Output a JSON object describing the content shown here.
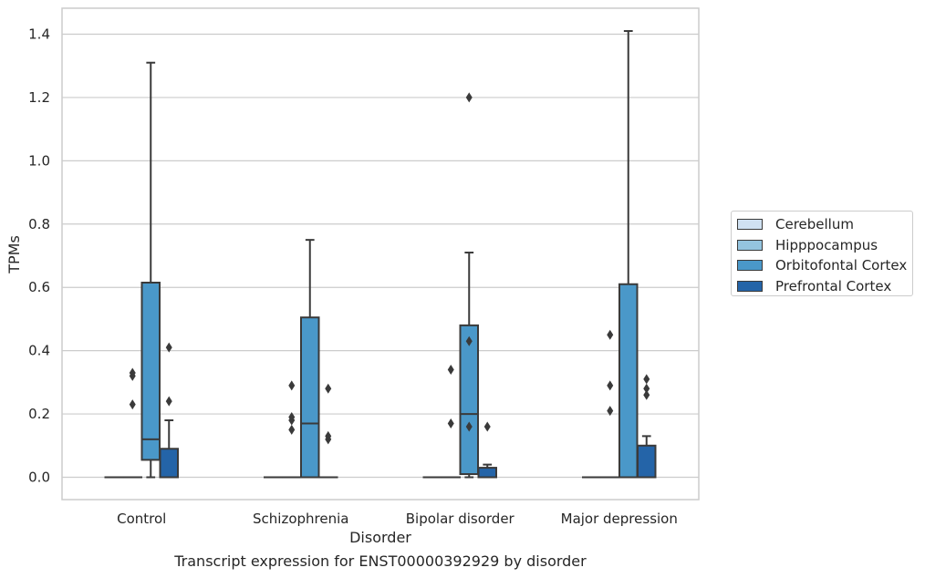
{
  "chart_data": {
    "type": "box",
    "title": "",
    "caption": "Transcript expression for ENST00000392929 by disorder",
    "xlabel": "Disorder",
    "ylabel": "TPMs",
    "ylim": [
      -0.07,
      1.48
    ],
    "yticks": [
      0.0,
      0.2,
      0.4,
      0.6,
      0.8,
      1.0,
      1.2,
      1.4
    ],
    "grid": true,
    "legend_placement": "right",
    "categories": [
      "Control",
      "Schizophrenia",
      "Bipolar disorder",
      "Major depression"
    ],
    "series": [
      {
        "name": "Cerebellum",
        "color": "#d0e1f2",
        "boxes": [
          {
            "q1": 0,
            "median": 0,
            "q3": 0,
            "whisker_low": 0,
            "whisker_high": 0,
            "outliers": []
          },
          {
            "q1": 0,
            "median": 0,
            "q3": 0,
            "whisker_low": 0,
            "whisker_high": 0,
            "outliers": []
          },
          {
            "q1": 0,
            "median": 0,
            "q3": 0,
            "whisker_low": 0,
            "whisker_high": 0,
            "outliers": []
          },
          {
            "q1": 0,
            "median": 0,
            "q3": 0,
            "whisker_low": 0,
            "whisker_high": 0,
            "outliers": []
          }
        ]
      },
      {
        "name": "Hipppocampus",
        "color": "#94c4df",
        "boxes": [
          {
            "q1": 0,
            "median": 0,
            "q3": 0,
            "whisker_low": 0,
            "whisker_high": 0,
            "outliers": [
              0.23,
              0.32,
              0.33
            ]
          },
          {
            "q1": 0,
            "median": 0,
            "q3": 0,
            "whisker_low": 0,
            "whisker_high": 0,
            "outliers": [
              0.15,
              0.18,
              0.19,
              0.29
            ]
          },
          {
            "q1": 0,
            "median": 0,
            "q3": 0,
            "whisker_low": 0,
            "whisker_high": 0,
            "outliers": [
              0.17,
              0.34
            ]
          },
          {
            "q1": 0,
            "median": 0,
            "q3": 0,
            "whisker_low": 0,
            "whisker_high": 0,
            "outliers": [
              0.21,
              0.29,
              0.45
            ]
          }
        ]
      },
      {
        "name": "Orbitofontal Cortex",
        "color": "#4a98c9",
        "boxes": [
          {
            "q1": 0.055,
            "median": 0.12,
            "q3": 0.615,
            "whisker_low": 0,
            "whisker_high": 1.31,
            "outliers": []
          },
          {
            "q1": 0,
            "median": 0.17,
            "q3": 0.505,
            "whisker_low": 0,
            "whisker_high": 0.75,
            "outliers": []
          },
          {
            "q1": 0.01,
            "median": 0.2,
            "q3": 0.48,
            "whisker_low": 0,
            "whisker_high": 0.71,
            "outliers": [
              0.16,
              0.43,
              1.2
            ]
          },
          {
            "q1": 0,
            "median": 0,
            "q3": 0.61,
            "whisker_low": 0,
            "whisker_high": 1.41,
            "outliers": []
          }
        ]
      },
      {
        "name": "Prefrontal Cortex",
        "color": "#2464a8",
        "boxes": [
          {
            "q1": 0,
            "median": 0,
            "q3": 0.09,
            "whisker_low": 0,
            "whisker_high": 0.18,
            "outliers": [
              0.24,
              0.41
            ]
          },
          {
            "q1": 0,
            "median": 0,
            "q3": 0,
            "whisker_low": 0,
            "whisker_high": 0,
            "outliers": [
              0.12,
              0.13,
              0.28
            ]
          },
          {
            "q1": 0,
            "median": 0,
            "q3": 0.03,
            "whisker_low": 0,
            "whisker_high": 0.04,
            "outliers": [
              0.16
            ]
          },
          {
            "q1": 0,
            "median": 0,
            "q3": 0.1,
            "whisker_low": 0,
            "whisker_high": 0.13,
            "outliers": [
              0.26,
              0.28,
              0.31
            ]
          }
        ]
      }
    ]
  }
}
